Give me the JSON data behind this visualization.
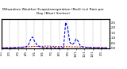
{
  "title": "Milwaukee Weather Evapotranspiration (Red) (vs) Rain per Day (Blue) (Inches)",
  "title_fontsize": 3.2,
  "background_color": "#ffffff",
  "grid_color": "#888888",
  "xlim": [
    0,
    52
  ],
  "ylim": [
    0,
    2.8
  ],
  "yticks": [
    0.0,
    0.5,
    1.0,
    1.5,
    2.0,
    2.5
  ],
  "red_x": [
    0,
    1,
    2,
    3,
    4,
    5,
    6,
    7,
    8,
    9,
    10,
    11,
    12,
    13,
    14,
    15,
    16,
    17,
    18,
    19,
    20,
    21,
    22,
    23,
    24,
    25,
    26,
    27,
    28,
    29,
    30,
    31,
    32,
    33,
    34,
    35,
    36,
    37,
    38,
    39,
    40,
    41,
    42,
    43,
    44,
    45,
    46,
    47,
    48,
    49,
    50,
    51
  ],
  "red_y": [
    0.05,
    0.04,
    0.05,
    0.05,
    0.06,
    0.07,
    0.07,
    0.09,
    0.1,
    0.11,
    0.13,
    0.13,
    0.14,
    0.15,
    0.16,
    0.18,
    0.19,
    0.18,
    0.2,
    0.21,
    0.19,
    0.21,
    0.22,
    0.21,
    0.2,
    0.19,
    0.18,
    0.19,
    0.17,
    0.18,
    0.16,
    0.17,
    0.15,
    0.16,
    0.14,
    0.15,
    0.13,
    0.13,
    0.13,
    0.12,
    0.12,
    0.11,
    0.11,
    0.1,
    0.09,
    0.09,
    0.08,
    0.08,
    0.07,
    0.06,
    0.06,
    0.05
  ],
  "blue_x": [
    0,
    1,
    2,
    3,
    4,
    5,
    6,
    7,
    8,
    9,
    10,
    11,
    12,
    13,
    14,
    15,
    16,
    17,
    18,
    19,
    20,
    21,
    22,
    23,
    24,
    25,
    26,
    27,
    28,
    29,
    30,
    31,
    32,
    33,
    34,
    35,
    36,
    37,
    38,
    39,
    40,
    41,
    42,
    43,
    44,
    45,
    46,
    47,
    48,
    49,
    50,
    51
  ],
  "blue_y": [
    0.04,
    0.04,
    0.06,
    0.05,
    0.04,
    0.05,
    0.06,
    0.08,
    0.1,
    0.1,
    0.08,
    0.12,
    0.15,
    0.3,
    0.8,
    1.1,
    0.7,
    0.4,
    0.2,
    0.12,
    0.08,
    0.07,
    0.06,
    0.08,
    0.06,
    0.1,
    0.06,
    0.05,
    0.04,
    0.07,
    0.06,
    2.5,
    2.0,
    0.6,
    0.35,
    0.5,
    0.9,
    0.7,
    0.25,
    0.15,
    0.12,
    0.1,
    0.08,
    0.07,
    0.06,
    0.07,
    0.05,
    0.06,
    0.04,
    0.05,
    0.04,
    0.04
  ],
  "xtick_positions": [
    0,
    4,
    8,
    12,
    16,
    20,
    24,
    28,
    32,
    36,
    40,
    44,
    48
  ],
  "xtick_labels": [
    "1/1",
    "2/1",
    "3/1",
    "4/1",
    "5/1",
    "6/1",
    "7/1",
    "8/1",
    "9/1",
    "10/1",
    "11/1",
    "12/1",
    "1/1"
  ],
  "vline_positions": [
    4,
    8,
    12,
    16,
    20,
    24,
    28,
    32,
    36,
    40,
    44,
    48
  ],
  "red_color": "#cc0000",
  "blue_color": "#0000dd",
  "tick_fontsize": 2.8,
  "right_ytick_fontsize": 2.8,
  "figwidth": 1.6,
  "figheight": 0.87,
  "dpi": 100
}
